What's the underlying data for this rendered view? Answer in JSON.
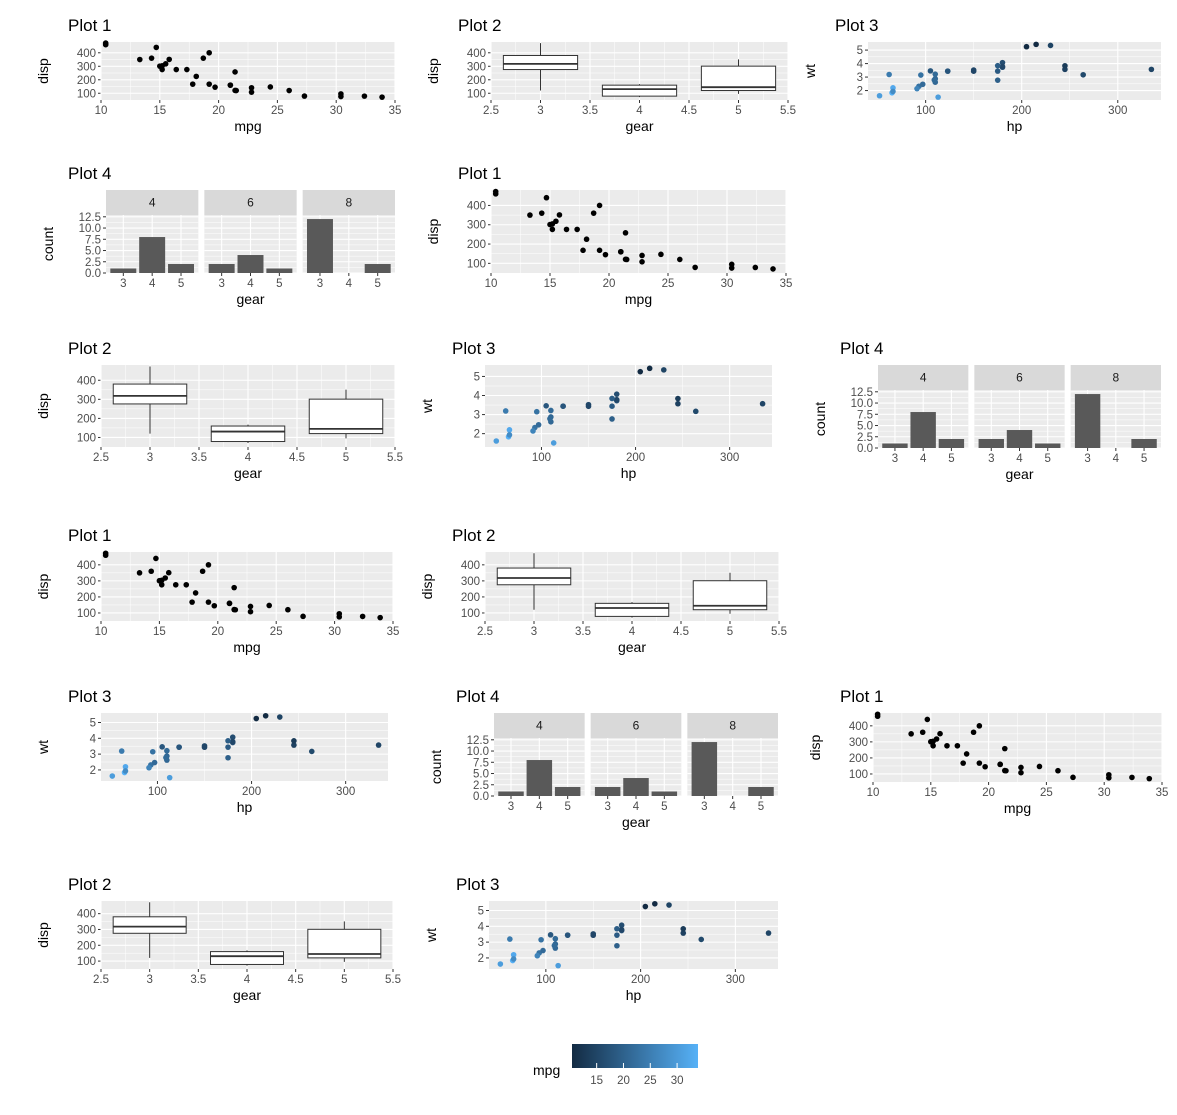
{
  "legend": {
    "title": "mpg",
    "ticks": [
      15,
      20,
      25,
      30
    ],
    "low_value": 10.4,
    "high_value": 33.9,
    "low_color": "#132B43",
    "high_color": "#56B1F7"
  },
  "theme": {
    "panel_bg": "#EBEBEB",
    "grid_color": "#FFFFFF",
    "strip_bg": "#D9D9D9",
    "point_color": "#000000",
    "bar_fill": "#595959",
    "box_fill": "#FFFFFF",
    "box_line": "#333333"
  },
  "chart_data": [
    {
      "type": "scatter",
      "title": "Plot 1",
      "xlabel": "mpg",
      "ylabel": "disp",
      "xlim": [
        10,
        35
      ],
      "ylim": [
        50,
        480
      ],
      "xticks": [
        10,
        15,
        20,
        25,
        30,
        35
      ],
      "yticks": [
        100,
        200,
        300,
        400
      ],
      "points": [
        [
          21.0,
          160.0
        ],
        [
          21.0,
          160.0
        ],
        [
          22.8,
          108.0
        ],
        [
          21.4,
          258.0
        ],
        [
          18.7,
          360.0
        ],
        [
          18.1,
          225.0
        ],
        [
          14.3,
          360.0
        ],
        [
          24.4,
          146.7
        ],
        [
          22.8,
          140.8
        ],
        [
          19.2,
          167.6
        ],
        [
          17.8,
          167.6
        ],
        [
          16.4,
          275.8
        ],
        [
          17.3,
          275.8
        ],
        [
          15.2,
          275.8
        ],
        [
          10.4,
          472.0
        ],
        [
          10.4,
          460.0
        ],
        [
          14.7,
          440.0
        ],
        [
          32.4,
          78.7
        ],
        [
          30.4,
          75.7
        ],
        [
          33.9,
          71.1
        ],
        [
          21.5,
          120.1
        ],
        [
          15.5,
          318.0
        ],
        [
          15.2,
          304.0
        ],
        [
          13.3,
          350.0
        ],
        [
          19.2,
          400.0
        ],
        [
          27.3,
          79.0
        ],
        [
          26.0,
          120.3
        ],
        [
          30.4,
          95.1
        ],
        [
          15.8,
          351.0
        ],
        [
          19.7,
          145.0
        ],
        [
          15.0,
          301.0
        ],
        [
          21.4,
          121.0
        ]
      ]
    },
    {
      "type": "boxplot",
      "title": "Plot 2",
      "xlabel": "gear",
      "ylabel": "disp",
      "xlim": [
        2.5,
        5.5
      ],
      "ylim": [
        50,
        480
      ],
      "xticks": [
        2.5,
        3.0,
        3.5,
        4.0,
        4.5,
        5.0,
        5.5
      ],
      "yticks": [
        100,
        200,
        300,
        400
      ],
      "boxes": [
        {
          "x": 3,
          "min": 120.1,
          "q1": 275.8,
          "median": 318.0,
          "q3": 380.0,
          "max": 472.0
        },
        {
          "x": 4,
          "min": 71.1,
          "q1": 78.7,
          "median": 130.9,
          "q3": 160.0,
          "max": 167.6
        },
        {
          "x": 5,
          "min": 95.1,
          "q1": 120.3,
          "median": 145.0,
          "q3": 301.0,
          "max": 351.0
        }
      ]
    },
    {
      "type": "scatter",
      "title": "Plot 3",
      "xlabel": "hp",
      "ylabel": "wt",
      "color_by": "mpg",
      "xlim": [
        40,
        345
      ],
      "ylim": [
        1.3,
        5.6
      ],
      "xticks": [
        100,
        200,
        300
      ],
      "yticks": [
        2,
        3,
        4,
        5
      ],
      "points": [
        [
          110,
          2.62,
          21.0
        ],
        [
          110,
          2.875,
          21.0
        ],
        [
          93,
          2.32,
          22.8
        ],
        [
          110,
          3.215,
          21.4
        ],
        [
          175,
          3.44,
          18.7
        ],
        [
          105,
          3.46,
          18.1
        ],
        [
          245,
          3.57,
          14.3
        ],
        [
          62,
          3.19,
          24.4
        ],
        [
          95,
          3.15,
          22.8
        ],
        [
          123,
          3.44,
          19.2
        ],
        [
          123,
          3.44,
          17.8
        ],
        [
          180,
          4.07,
          16.4
        ],
        [
          180,
          3.73,
          17.3
        ],
        [
          180,
          3.78,
          15.2
        ],
        [
          205,
          5.25,
          10.4
        ],
        [
          215,
          5.424,
          10.4
        ],
        [
          230,
          5.345,
          14.7
        ],
        [
          66,
          2.2,
          32.4
        ],
        [
          52,
          1.615,
          30.4
        ],
        [
          65,
          1.835,
          33.9
        ],
        [
          97,
          2.465,
          21.5
        ],
        [
          150,
          3.52,
          15.5
        ],
        [
          150,
          3.435,
          15.2
        ],
        [
          245,
          3.84,
          13.3
        ],
        [
          175,
          3.845,
          19.2
        ],
        [
          66,
          1.935,
          27.3
        ],
        [
          91,
          2.14,
          26.0
        ],
        [
          113,
          1.513,
          30.4
        ],
        [
          264,
          3.17,
          15.8
        ],
        [
          175,
          2.77,
          19.7
        ],
        [
          335,
          3.57,
          15.0
        ],
        [
          109,
          2.78,
          21.4
        ]
      ]
    },
    {
      "type": "bar",
      "title": "Plot 4",
      "xlabel": "gear",
      "ylabel": "count",
      "facet": "cyl",
      "facets": [
        "4",
        "6",
        "8"
      ],
      "categories": [
        "3",
        "4",
        "5"
      ],
      "ylim": [
        0,
        12.9
      ],
      "yticks": [
        "0.0",
        "2.5",
        "5.0",
        "7.5",
        "10.0",
        "12.5"
      ],
      "values": [
        [
          1,
          8,
          2
        ],
        [
          2,
          4,
          1
        ],
        [
          12,
          0,
          2
        ]
      ]
    }
  ],
  "layout": [
    {
      "title": "Plot 1",
      "chart": 0
    },
    {
      "title": "Plot 2",
      "chart": 1
    },
    {
      "title": "Plot 3",
      "chart": 2
    },
    {
      "title": "Plot 4",
      "chart": 3
    },
    {
      "title": "Plot 1",
      "chart": 0
    },
    {
      "title": "Plot 2",
      "chart": 1
    },
    {
      "title": "Plot 3",
      "chart": 2
    },
    {
      "title": "Plot 4",
      "chart": 3
    },
    {
      "title": "Plot 1",
      "chart": 0
    },
    {
      "title": "Plot 2",
      "chart": 1
    },
    {
      "title": "Plot 3",
      "chart": 2
    },
    {
      "title": "Plot 4",
      "chart": 3
    },
    {
      "title": "Plot 1",
      "chart": 0
    },
    {
      "title": "Plot 2",
      "chart": 1
    },
    {
      "title": "Plot 3",
      "chart": 2
    }
  ]
}
